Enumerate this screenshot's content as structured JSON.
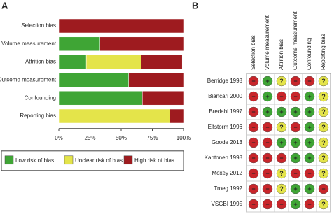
{
  "panel_labels": [
    "A",
    "B"
  ],
  "chart_data": {
    "type": "bar",
    "orientation": "horizontal",
    "stacked": true,
    "categories": [
      "Selection bias",
      "Volume measurement",
      "Attrition bias",
      "Outcome measurement",
      "Confounding",
      "Reporting bias"
    ],
    "series": [
      {
        "name": "Low risk of bias",
        "color": "#3fa535",
        "values": [
          0,
          33,
          22,
          56,
          67,
          0
        ]
      },
      {
        "name": "Unclear risk of bias",
        "color": "#e4e44a",
        "values": [
          0,
          0,
          44,
          0,
          0,
          89
        ]
      },
      {
        "name": "High risk of bias",
        "color": "#9e1b1f",
        "values": [
          100,
          67,
          33,
          44,
          33,
          11
        ]
      }
    ],
    "xlim": [
      0,
      100
    ],
    "xticks": [
      {
        "value": 0,
        "label": "0%"
      },
      {
        "value": 25,
        "label": "25%"
      },
      {
        "value": 50,
        "label": "50%"
      },
      {
        "value": 75,
        "label": "75%"
      },
      {
        "value": 100,
        "label": "100%"
      }
    ],
    "legend": "bottom"
  },
  "table": {
    "columns": [
      "Selection bias",
      "Volume measurement",
      "Attrition bias",
      "Outcome measurement",
      "Confounding",
      "Reporting bias"
    ],
    "colors": {
      "+": "#3fa535",
      "?": "#e4e44a",
      "−": "#c8262b"
    },
    "rows": [
      {
        "study": "Berridge 1998",
        "judgments": [
          "−",
          "+",
          "?",
          "−",
          "−",
          "?"
        ]
      },
      {
        "study": "Biancari 2000",
        "judgments": [
          "−",
          "+",
          "−",
          "−",
          "+",
          "?"
        ]
      },
      {
        "study": "Bredahl 1997",
        "judgments": [
          "−",
          "+",
          "+",
          "+",
          "+",
          "?"
        ]
      },
      {
        "study": "Elfstorm 1996",
        "judgments": [
          "−",
          "−",
          "?",
          "−",
          "+",
          "?"
        ]
      },
      {
        "study": "Goode 2013",
        "judgments": [
          "−",
          "−",
          "+",
          "+",
          "+",
          "?"
        ]
      },
      {
        "study": "Kantonen 1998",
        "judgments": [
          "−",
          "−",
          "−",
          "+",
          "+",
          "?"
        ]
      },
      {
        "study": "Moxey 2012",
        "judgments": [
          "−",
          "−",
          "?",
          "−",
          "−",
          "?"
        ]
      },
      {
        "study": "Troeg 1992",
        "judgments": [
          "−",
          "−",
          "?",
          "+",
          "+",
          "−"
        ]
      },
      {
        "study": "VSGBI 1995",
        "judgments": [
          "−",
          "−",
          "−",
          "+",
          "−",
          "?"
        ]
      }
    ]
  }
}
